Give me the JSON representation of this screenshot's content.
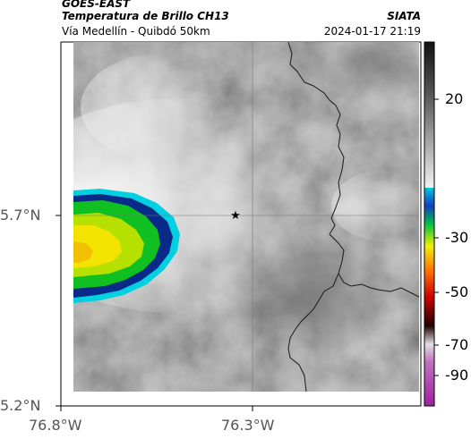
{
  "header": {
    "satellite": "GOES-EAST",
    "product": "Temperatura de Brillo CH13",
    "organization": "SIATA",
    "route": "Vía Medellín - Quibdó 50km",
    "datetime": "2024-01-17 21:19"
  },
  "map": {
    "lat_ticks": [
      "5.7°N",
      "5.2°N"
    ],
    "lon_ticks": [
      "76.8°W",
      "76.3°W"
    ],
    "marker_icon": "star-icon",
    "colors": {
      "cloud_cold": "#0a2a8a",
      "cloud_cyan": "#00d0e0",
      "cloud_green": "#10c020",
      "cloud_yellow": "#f2e400",
      "border_line": "#1a1a1a"
    }
  },
  "colorbar": {
    "labels": [
      "20",
      "-30",
      "-50",
      "-70",
      "-90"
    ]
  }
}
